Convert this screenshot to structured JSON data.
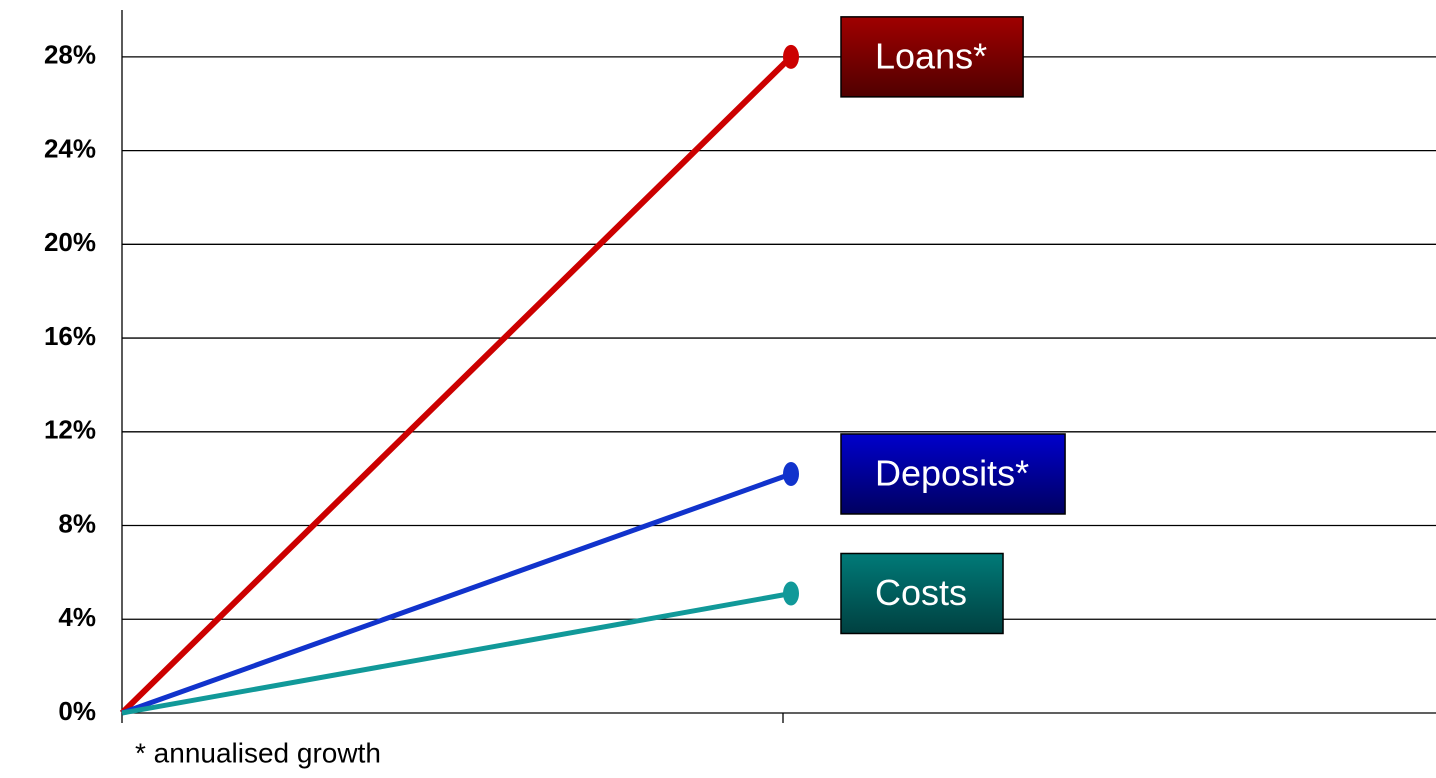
{
  "chart_data": {
    "type": "line",
    "categories": [
      null,
      null
    ],
    "series": [
      {
        "name": "Loans*",
        "color": "#cc0000",
        "box_color": "#a00000",
        "values": [
          0,
          28
        ]
      },
      {
        "name": "Deposits*",
        "color": "#1133cc",
        "box_color": "#0000cc",
        "values": [
          0,
          10.2
        ]
      },
      {
        "name": "Costs",
        "color": "#119999",
        "box_color": "#007a78",
        "values": [
          0,
          5.1
        ]
      }
    ],
    "ylim": [
      0,
      30
    ],
    "yticks": [
      {
        "value": 0,
        "label": "0%"
      },
      {
        "value": 4,
        "label": "4%"
      },
      {
        "value": 8,
        "label": "8%"
      },
      {
        "value": 12,
        "label": "12%"
      },
      {
        "value": 16,
        "label": "16%"
      },
      {
        "value": 20,
        "label": "20%"
      },
      {
        "value": 24,
        "label": "24%"
      },
      {
        "value": 28,
        "label": "28%"
      }
    ],
    "grid": true,
    "annotation": "* annualised growth"
  }
}
